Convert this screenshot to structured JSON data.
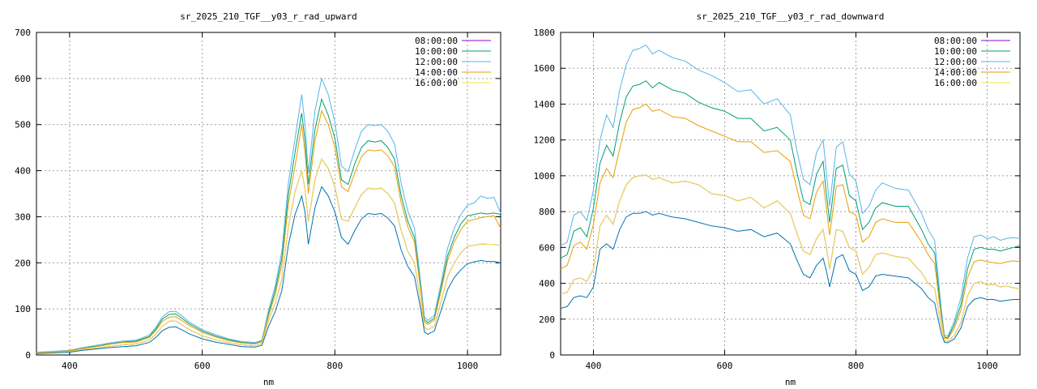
{
  "chart_data": [
    {
      "type": "line",
      "title": "sr_2025_210_TGF__y03_r_rad_upward",
      "xlabel": "nm",
      "ylabel": "",
      "xlim": [
        350,
        1050
      ],
      "ylim": [
        0,
        700
      ],
      "xticks": [
        "400",
        "600",
        "800",
        "1000"
      ],
      "yticks": [
        "0",
        "100",
        "200",
        "300",
        "400",
        "500",
        "600",
        "700"
      ],
      "grid": true,
      "legend": "top-right",
      "x": [
        350,
        400,
        420,
        440,
        460,
        480,
        500,
        520,
        530,
        540,
        550,
        560,
        570,
        580,
        600,
        620,
        640,
        660,
        680,
        690,
        700,
        710,
        720,
        730,
        740,
        750,
        755,
        760,
        770,
        780,
        790,
        800,
        810,
        820,
        830,
        840,
        850,
        860,
        870,
        880,
        890,
        900,
        910,
        920,
        930,
        935,
        940,
        950,
        960,
        970,
        980,
        990,
        1000,
        1010,
        1020,
        1030,
        1040,
        1050
      ],
      "series": [
        {
          "name": "08:00:00",
          "color": "#9400d3",
          "values": [
            4,
            7,
            12,
            15,
            19,
            22,
            24,
            32,
            45,
            63,
            73,
            74,
            65,
            55,
            42,
            33,
            27,
            22,
            20,
            25,
            75,
            112,
            165,
            280,
            355,
            400,
            360,
            290,
            380,
            425,
            405,
            365,
            295,
            290,
            320,
            348,
            362,
            360,
            362,
            350,
            330,
            270,
            225,
            200,
            110,
            60,
            55,
            62,
            115,
            170,
            200,
            222,
            236,
            238,
            241,
            240,
            240,
            237
          ]
        },
        {
          "name": "10:00:00",
          "color": "#009e73",
          "values": [
            5,
            9,
            15,
            19,
            24,
            28,
            30,
            40,
            56,
            78,
            88,
            89,
            79,
            68,
            52,
            41,
            33,
            27,
            25,
            30,
            90,
            140,
            210,
            350,
            440,
            525,
            465,
            370,
            490,
            555,
            520,
            470,
            380,
            370,
            415,
            450,
            465,
            462,
            465,
            450,
            425,
            345,
            290,
            255,
            140,
            77,
            70,
            80,
            145,
            215,
            255,
            285,
            302,
            305,
            308,
            306,
            308,
            305
          ]
        },
        {
          "name": "12:00:00",
          "color": "#56b4e9",
          "values": [
            6,
            10,
            16,
            21,
            26,
            30,
            32,
            43,
            60,
            83,
            94,
            95,
            84,
            72,
            55,
            44,
            35,
            29,
            27,
            32,
            97,
            150,
            225,
            375,
            470,
            565,
            500,
            395,
            530,
            600,
            565,
            505,
            410,
            398,
            445,
            485,
            500,
            498,
            500,
            485,
            458,
            372,
            312,
            275,
            150,
            83,
            75,
            86,
            155,
            232,
            275,
            305,
            325,
            330,
            345,
            340,
            342,
            308
          ]
        },
        {
          "name": "14:00:00",
          "color": "#e69f00",
          "values": [
            5,
            9,
            14,
            18,
            23,
            27,
            28,
            38,
            53,
            73,
            82,
            83,
            74,
            64,
            49,
            39,
            31,
            26,
            24,
            29,
            85,
            131,
            195,
            330,
            410,
            500,
            440,
            350,
            465,
            530,
            500,
            450,
            365,
            355,
            395,
            430,
            445,
            443,
            445,
            432,
            408,
            330,
            278,
            245,
            133,
            72,
            66,
            76,
            138,
            205,
            245,
            272,
            290,
            294,
            298,
            300,
            302,
            275
          ]
        },
        {
          "name": "16:00:00",
          "color": "#f0e442",
          "values": [
            4,
            7,
            12,
            15,
            19,
            22,
            24,
            32,
            45,
            63,
            73,
            74,
            65,
            55,
            42,
            33,
            27,
            22,
            20,
            25,
            75,
            112,
            165,
            280,
            355,
            400,
            360,
            290,
            380,
            425,
            405,
            365,
            295,
            290,
            320,
            348,
            362,
            360,
            362,
            350,
            330,
            270,
            225,
            200,
            110,
            60,
            55,
            62,
            115,
            170,
            200,
            222,
            236,
            238,
            241,
            240,
            240,
            237
          ]
        },
        {
          "name": "",
          "color": "#0072b2",
          "values": [
            3,
            6,
            10,
            13,
            16,
            18,
            20,
            27,
            38,
            53,
            60,
            61,
            54,
            46,
            35,
            28,
            23,
            18,
            17,
            21,
            62,
            94,
            140,
            240,
            305,
            345,
            310,
            240,
            320,
            365,
            345,
            310,
            255,
            240,
            270,
            295,
            307,
            305,
            307,
            297,
            280,
            228,
            192,
            170,
            95,
            50,
            45,
            52,
            96,
            142,
            168,
            185,
            198,
            202,
            205,
            203,
            203,
            200
          ]
        }
      ]
    },
    {
      "type": "line",
      "title": "sr_2025_210_TGF__y03_r_rad_downward",
      "xlabel": "nm",
      "ylabel": "",
      "xlim": [
        350,
        1050
      ],
      "ylim": [
        0,
        1800
      ],
      "xticks": [
        "400",
        "600",
        "800",
        "1000"
      ],
      "yticks": [
        "0",
        "200",
        "400",
        "600",
        "800",
        "1000",
        "1200",
        "1400",
        "1600",
        "1800"
      ],
      "grid": true,
      "legend": "top-right",
      "x": [
        350,
        360,
        370,
        380,
        390,
        400,
        410,
        420,
        430,
        440,
        450,
        460,
        470,
        480,
        490,
        500,
        520,
        540,
        560,
        580,
        600,
        620,
        640,
        660,
        680,
        700,
        710,
        720,
        730,
        740,
        750,
        755,
        760,
        770,
        780,
        790,
        800,
        810,
        820,
        830,
        840,
        860,
        880,
        900,
        910,
        920,
        930,
        935,
        940,
        950,
        960,
        970,
        980,
        990,
        1000,
        1010,
        1020,
        1030,
        1040,
        1050
      ],
      "series": [
        {
          "name": "08:00:00",
          "color": "#9400d3",
          "values": [
            340,
            350,
            420,
            430,
            410,
            480,
            720,
            780,
            730,
            860,
            950,
            990,
            1000,
            1005,
            980,
            990,
            960,
            970,
            950,
            900,
            890,
            860,
            880,
            820,
            860,
            790,
            680,
            580,
            560,
            650,
            700,
            600,
            480,
            700,
            690,
            600,
            580,
            450,
            490,
            560,
            570,
            550,
            540,
            460,
            400,
            370,
            160,
            80,
            75,
            110,
            180,
            330,
            400,
            410,
            390,
            395,
            380,
            385,
            375,
            370
          ]
        },
        {
          "name": "10:00:00",
          "color": "#009e73",
          "values": [
            540,
            560,
            690,
            710,
            660,
            820,
            1070,
            1170,
            1110,
            1300,
            1440,
            1500,
            1510,
            1530,
            1490,
            1520,
            1480,
            1460,
            1410,
            1380,
            1360,
            1320,
            1320,
            1250,
            1270,
            1200,
            1020,
            860,
            840,
            1010,
            1080,
            900,
            740,
            1040,
            1060,
            890,
            860,
            700,
            740,
            820,
            850,
            830,
            830,
            700,
            620,
            570,
            230,
            100,
            95,
            170,
            280,
            480,
            590,
            600,
            590,
            590,
            580,
            590,
            600,
            610
          ]
        },
        {
          "name": "12:00:00",
          "color": "#56b4e9",
          "values": [
            610,
            630,
            780,
            800,
            750,
            920,
            1200,
            1340,
            1270,
            1480,
            1620,
            1700,
            1710,
            1730,
            1680,
            1700,
            1660,
            1640,
            1590,
            1560,
            1520,
            1470,
            1480,
            1400,
            1430,
            1340,
            1140,
            980,
            950,
            1130,
            1200,
            1020,
            830,
            1160,
            1190,
            1010,
            970,
            790,
            830,
            920,
            960,
            930,
            920,
            790,
            700,
            640,
            260,
            110,
            105,
            190,
            320,
            540,
            660,
            670,
            650,
            660,
            640,
            650,
            655,
            650
          ]
        },
        {
          "name": "14:00:00",
          "color": "#e69f00",
          "values": [
            480,
            500,
            610,
            630,
            590,
            730,
            960,
            1040,
            990,
            1150,
            1300,
            1370,
            1380,
            1400,
            1360,
            1370,
            1330,
            1320,
            1280,
            1250,
            1220,
            1190,
            1190,
            1130,
            1140,
            1080,
            930,
            780,
            760,
            910,
            970,
            820,
            670,
            940,
            950,
            800,
            780,
            630,
            660,
            740,
            760,
            740,
            740,
            630,
            560,
            510,
            210,
            95,
            90,
            150,
            250,
            430,
            520,
            530,
            520,
            515,
            510,
            520,
            525,
            520
          ]
        },
        {
          "name": "16:00:00",
          "color": "#f0e442",
          "values": [
            340,
            350,
            420,
            430,
            410,
            480,
            720,
            780,
            730,
            860,
            950,
            990,
            1000,
            1005,
            980,
            990,
            960,
            970,
            950,
            900,
            890,
            860,
            880,
            820,
            860,
            790,
            680,
            580,
            560,
            650,
            700,
            600,
            480,
            700,
            690,
            600,
            580,
            450,
            490,
            560,
            570,
            550,
            540,
            460,
            400,
            370,
            160,
            80,
            75,
            110,
            180,
            330,
            400,
            410,
            390,
            395,
            380,
            385,
            375,
            370
          ]
        },
        {
          "name": "",
          "color": "#0072b2",
          "values": [
            260,
            270,
            320,
            330,
            320,
            380,
            590,
            620,
            590,
            700,
            770,
            790,
            790,
            800,
            780,
            790,
            770,
            760,
            740,
            720,
            710,
            690,
            700,
            660,
            680,
            620,
            530,
            450,
            430,
            500,
            540,
            470,
            380,
            540,
            560,
            470,
            450,
            360,
            380,
            440,
            450,
            440,
            430,
            370,
            320,
            290,
            120,
            70,
            68,
            90,
            150,
            270,
            310,
            320,
            310,
            310,
            300,
            305,
            310,
            310
          ]
        }
      ]
    }
  ]
}
